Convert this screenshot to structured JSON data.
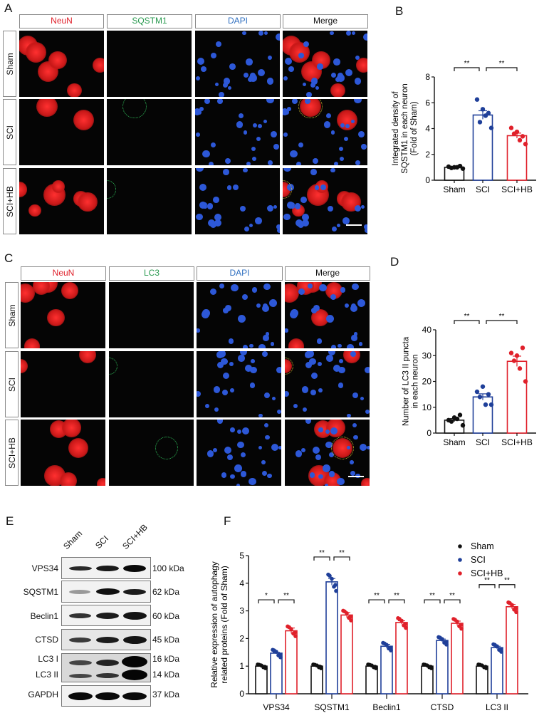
{
  "panels": {
    "A": {
      "letter": "A",
      "columns": [
        {
          "label": "NeuN",
          "color": "#e0202a"
        },
        {
          "label": "SQSTM1",
          "color": "#2a9a50"
        },
        {
          "label": "DAPI",
          "color": "#2f6fc0"
        },
        {
          "label": "Merge",
          "color": "#111111"
        }
      ],
      "rows": [
        "Sham",
        "SCI",
        "SCI+HB"
      ]
    },
    "C": {
      "letter": "C",
      "columns": [
        {
          "label": "NeuN",
          "color": "#e0202a"
        },
        {
          "label": "LC3",
          "color": "#2a9a50"
        },
        {
          "label": "DAPI",
          "color": "#2f6fc0"
        },
        {
          "label": "Merge",
          "color": "#111111"
        }
      ],
      "rows": [
        "Sham",
        "SCI",
        "SCI+HB"
      ]
    },
    "B": {
      "letter": "B"
    },
    "D": {
      "letter": "D"
    },
    "E": {
      "letter": "E",
      "lanes": [
        "Sham",
        "SCI",
        "SCI+HB"
      ],
      "blots": [
        {
          "label": "VPS34",
          "kda": "100 kDa"
        },
        {
          "label": "SQSTM1",
          "kda": "62 kDa"
        },
        {
          "label": "Beclin1",
          "kda": "60 kDa"
        },
        {
          "label": "CTSD",
          "kda": "45 kDa"
        },
        {
          "label": "LC3 I",
          "kda": "16 kDa"
        },
        {
          "label": "LC3 II",
          "kda": "14 kDa"
        },
        {
          "label": "GAPDH",
          "kda": "37 kDa"
        }
      ]
    },
    "F": {
      "letter": "F"
    }
  },
  "colors": {
    "sham": "#111111",
    "sci": "#1f3f99",
    "scihb": "#e0202a"
  },
  "chart_data": [
    {
      "id": "B",
      "type": "bar",
      "title": "",
      "xlabel": "",
      "ylabel": "Integrated density of SQSTM1 in each neuron (Fold of Sham)",
      "ylabel_lines": [
        "Integrated density of",
        "SQSTM1 in each neuron",
        "(Fold of Sham)"
      ],
      "categories": [
        "Sham",
        "SCI",
        "SCI+HB"
      ],
      "values": [
        1.0,
        5.05,
        3.45
      ],
      "sem": [
        0.05,
        0.33,
        0.2
      ],
      "points": [
        [
          1.05,
          1.0,
          1.1,
          0.95,
          1.0,
          0.9
        ],
        [
          6.25,
          5.5,
          5.2,
          4.5,
          5.0,
          4.05
        ],
        [
          4.05,
          3.75,
          3.4,
          3.6,
          3.1,
          2.8
        ]
      ],
      "ylim": [
        0,
        8
      ],
      "yticks": [
        0,
        2,
        4,
        6,
        8
      ],
      "significance": [
        {
          "from": 0,
          "to": 1,
          "label": "**"
        },
        {
          "from": 1,
          "to": 2,
          "label": "**"
        }
      ]
    },
    {
      "id": "D",
      "type": "bar",
      "title": "",
      "xlabel": "",
      "ylabel": "Number of LC3 II puncta in each neuron",
      "ylabel_lines": [
        "Number of LC3 II puncta",
        "in each neuron"
      ],
      "categories": [
        "Sham",
        "SCI",
        "SCI+HB"
      ],
      "values": [
        5.0,
        14.0,
        27.8
      ],
      "sem": [
        0.6,
        1.2,
        2.0
      ],
      "points": [
        [
          5.0,
          6.0,
          7.0,
          4.5,
          5.5,
          3.0
        ],
        [
          16.0,
          18.0,
          15.0,
          14.0,
          11.0,
          11.0
        ],
        [
          31.0,
          30.0,
          33.0,
          28.0,
          25.0,
          20.0
        ]
      ],
      "ylim": [
        0,
        40
      ],
      "yticks": [
        0,
        10,
        20,
        30,
        40
      ],
      "significance": [
        {
          "from": 0,
          "to": 1,
          "label": "**"
        },
        {
          "from": 1,
          "to": 2,
          "label": "**"
        }
      ]
    },
    {
      "id": "F",
      "type": "bar",
      "title": "",
      "xlabel": "",
      "ylabel": "Relative expression of autophagy related proteins (Fold of Sham)",
      "ylabel_lines": [
        "Relative expression of autophagy",
        "related proteins (Fold of Sham)"
      ],
      "categories": [
        "VPS34",
        "SQSTM1",
        "Beclin1",
        "CTSD",
        "LC3 II"
      ],
      "legend": [
        "Sham",
        "SCI",
        "SCI+HB"
      ],
      "legend_position": "top-right",
      "series": [
        {
          "name": "Sham",
          "values": [
            1.0,
            1.0,
            1.0,
            1.0,
            1.0
          ],
          "sem": [
            0.03,
            0.04,
            0.03,
            0.03,
            0.02
          ]
        },
        {
          "name": "SCI",
          "values": [
            1.47,
            4.05,
            1.72,
            1.93,
            1.67
          ],
          "sem": [
            0.03,
            0.12,
            0.07,
            0.05,
            0.05
          ]
        },
        {
          "name": "SCI+HB",
          "values": [
            2.28,
            2.85,
            2.58,
            2.55,
            3.15
          ],
          "sem": [
            0.1,
            0.09,
            0.06,
            0.08,
            0.08
          ]
        }
      ],
      "ylim": [
        0,
        5
      ],
      "yticks": [
        0,
        1,
        2,
        3,
        4,
        5
      ],
      "significance": [
        {
          "category": "VPS34",
          "labels": [
            "*",
            "**"
          ],
          "y": 3.4
        },
        {
          "category": "SQSTM1",
          "labels": [
            "**",
            "**"
          ],
          "y": 4.95
        },
        {
          "category": "Beclin1",
          "labels": [
            "**",
            "**"
          ],
          "y": 3.4
        },
        {
          "category": "CTSD",
          "labels": [
            "**",
            "**"
          ],
          "y": 3.4
        },
        {
          "category": "LC3 II",
          "labels": [
            "**",
            "**"
          ],
          "y": 3.95
        }
      ]
    }
  ]
}
